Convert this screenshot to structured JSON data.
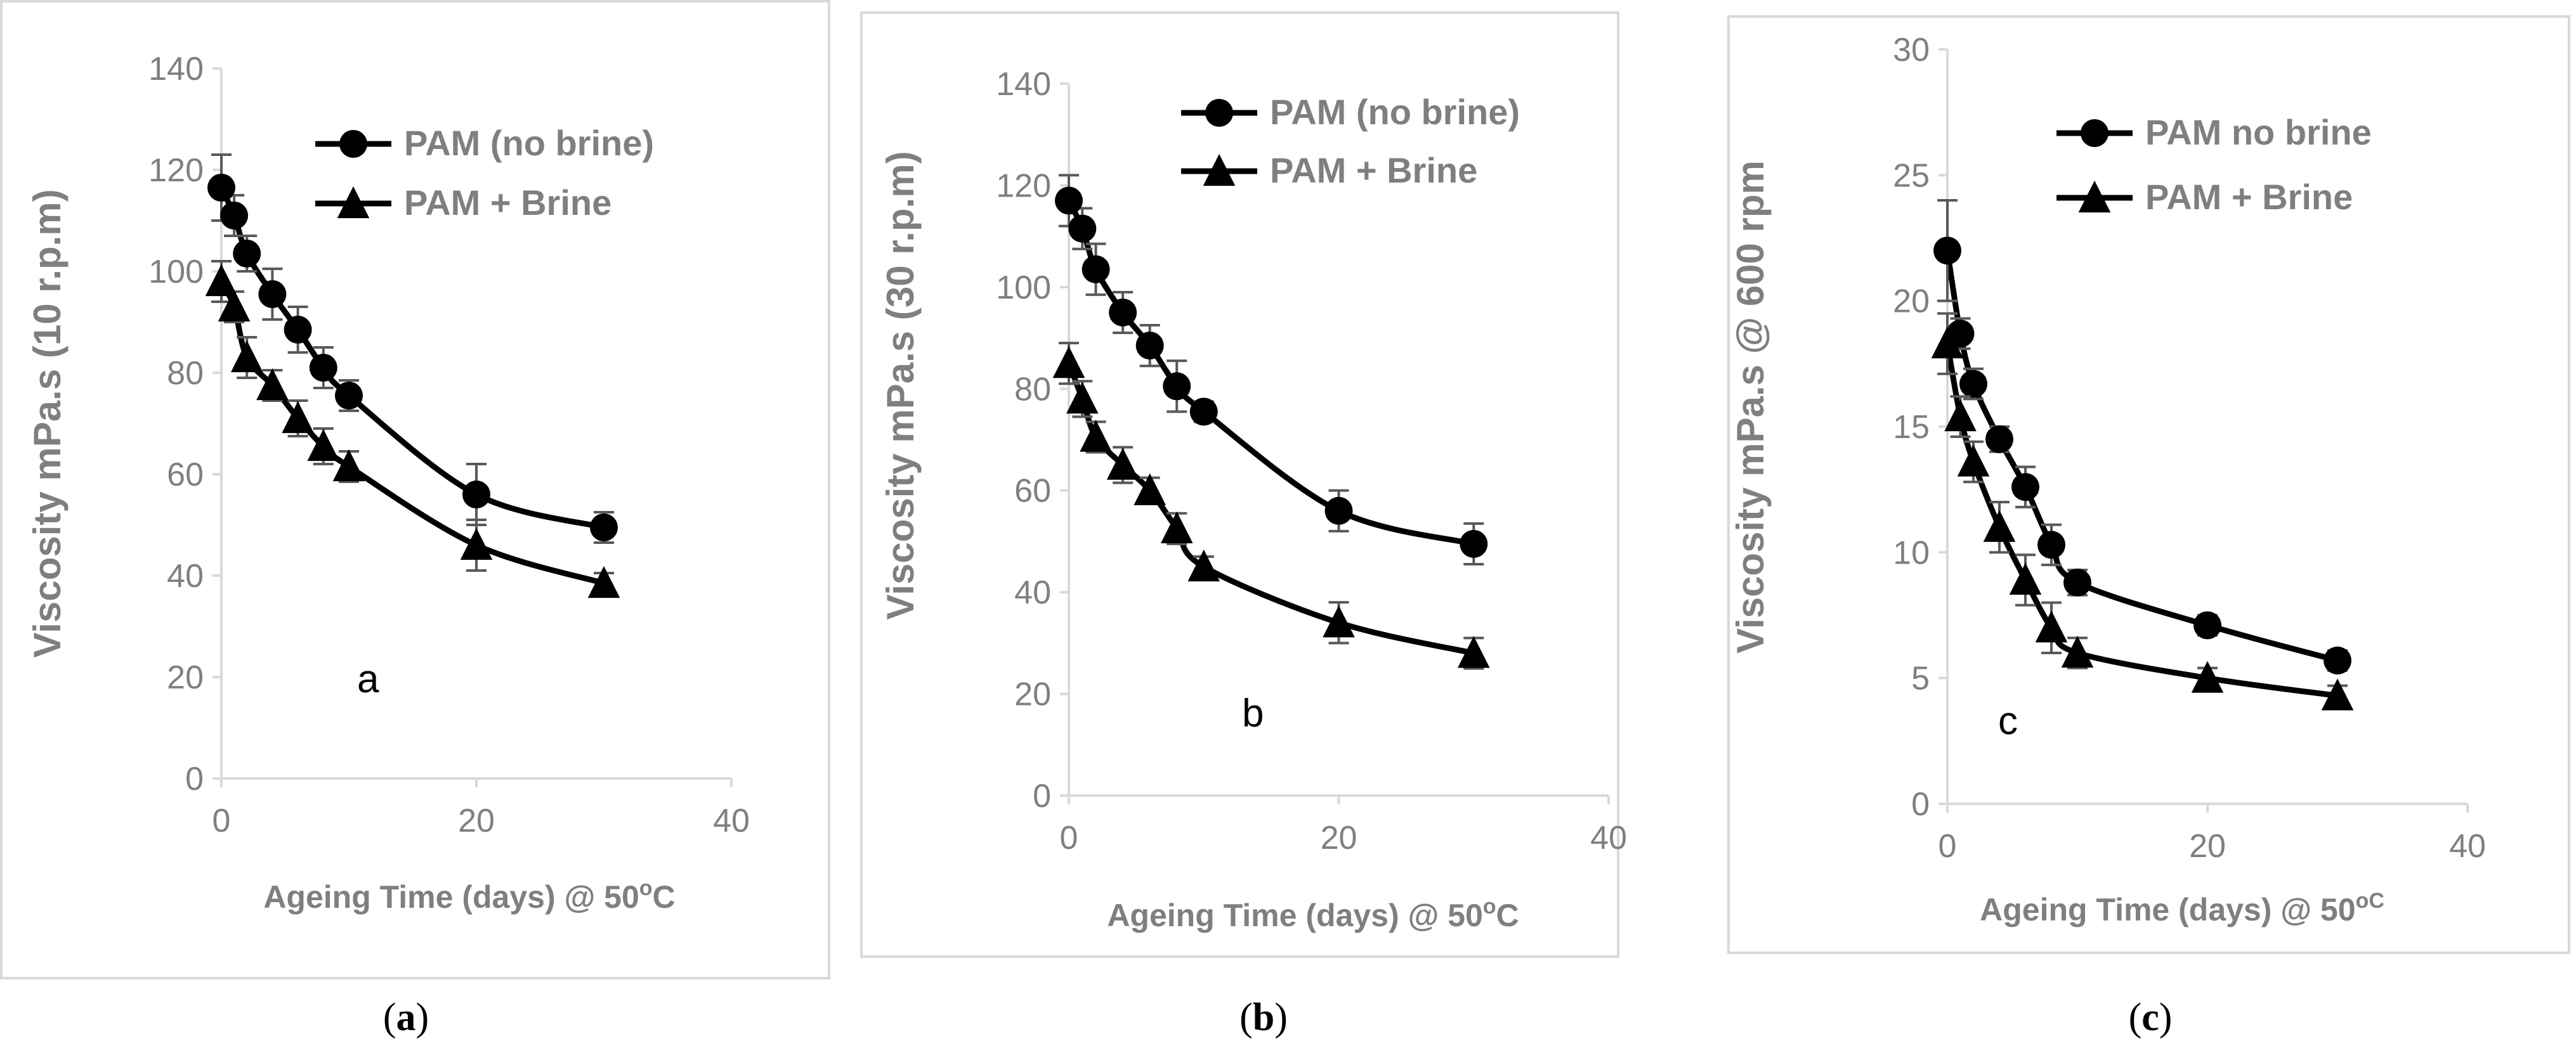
{
  "colors": {
    "series": "#000000",
    "axis_text": "#7f7f7f",
    "axis_line": "#d9d9d9",
    "frame": "#d9d9d9",
    "error_bar": "#595959"
  },
  "panels": [
    {
      "caption": "(a)",
      "caption_letter": "a",
      "inner_label": "a",
      "chart_data": {
        "type": "line",
        "xlabel": "Ageing Time (days) @ 50",
        "xlabel_sup": "o",
        "xlabel_tail": "C",
        "ylabel": "Viscosity mPa.s (10 r.p.m)",
        "xlim": [
          0,
          40
        ],
        "ylim": [
          0,
          140
        ],
        "xticks": [
          "0",
          "20",
          "40"
        ],
        "yticks": [
          "0",
          "20",
          "40",
          "60",
          "80",
          "100",
          "120",
          "140"
        ],
        "legend_position": "top-right",
        "grid": false,
        "series": [
          {
            "name": "PAM (no brine)",
            "marker": "circle",
            "x": [
              0,
              1,
              2,
              4,
              6,
              8,
              10,
              20,
              30
            ],
            "y": [
              116.5,
              111,
              103.5,
              95.5,
              88.5,
              81,
              75.5,
              56,
              49.5
            ],
            "err": [
              6.5,
              4,
              3.5,
              5,
              4.5,
              4,
              3,
              6,
              3
            ]
          },
          {
            "name": "PAM + Brine",
            "marker": "triangle",
            "x": [
              0,
              1,
              2,
              4,
              6,
              8,
              10,
              20,
              30
            ],
            "y": [
              98,
              93,
              83,
              77.5,
              71,
              65.5,
              61.5,
              46,
              38.5
            ],
            "err": [
              4,
              3,
              4,
              3,
              3.5,
              3.5,
              3,
              5,
              2
            ]
          }
        ]
      }
    },
    {
      "caption": "(b)",
      "caption_letter": "b",
      "inner_label": "b",
      "chart_data": {
        "type": "line",
        "xlabel": "Ageing Time (days) @ 50",
        "xlabel_sup": "o",
        "xlabel_tail": "C",
        "ylabel": "Viscosity mPa.s (30 r.p.m)",
        "xlim": [
          0,
          40
        ],
        "ylim": [
          0,
          140
        ],
        "xticks": [
          "0",
          "20",
          "40"
        ],
        "yticks": [
          "0",
          "20",
          "40",
          "60",
          "80",
          "100",
          "120",
          "140"
        ],
        "legend_position": "top-right",
        "grid": false,
        "series": [
          {
            "name": "PAM (no brine)",
            "marker": "circle",
            "x": [
              0,
              1,
              2,
              4,
              6,
              8,
              10,
              20,
              30
            ],
            "y": [
              117,
              111.5,
              103.5,
              95,
              88.5,
              80.5,
              75.5,
              56,
              49.5
            ],
            "err": [
              5,
              4,
              5,
              4,
              4,
              5,
              2,
              4,
              4
            ]
          },
          {
            "name": "PAM + Brine",
            "marker": "triangle",
            "x": [
              0,
              1,
              2,
              4,
              6,
              8,
              10,
              20,
              30
            ],
            "y": [
              85,
              78,
              70.5,
              65,
              60,
              52.5,
              45,
              34,
              28
            ],
            "err": [
              4,
              3.5,
              3,
              3.5,
              2.5,
              3,
              2,
              4,
              3
            ]
          }
        ]
      }
    },
    {
      "caption": "(c)",
      "caption_letter": "c",
      "inner_label": "c",
      "chart_data": {
        "type": "line",
        "xlabel": "Ageing Time (days) @ 50",
        "xlabel_sup": "oC",
        "xlabel_tail": "",
        "ylabel": "Viscosity mPa.s @ 600 rpm",
        "xlim": [
          0,
          40
        ],
        "ylim": [
          0,
          30
        ],
        "xticks": [
          "0",
          "20",
          "40"
        ],
        "yticks": [
          "0",
          "5",
          "10",
          "15",
          "20",
          "25",
          "30"
        ],
        "legend_position": "top-right",
        "grid": false,
        "series": [
          {
            "name": "PAM no brine",
            "marker": "circle",
            "x": [
              0,
              1,
              2,
              4,
              6,
              8,
              10,
              20,
              30
            ],
            "y": [
              22,
              18.7,
              16.7,
              14.5,
              12.6,
              10.3,
              8.8,
              7.1,
              5.7
            ],
            "err": [
              2,
              0.6,
              0.6,
              0.5,
              0.8,
              0.8,
              0.5,
              0.4,
              0.4
            ]
          },
          {
            "name": "PAM + Brine",
            "marker": "triangle",
            "x": [
              0,
              1,
              2,
              4,
              6,
              8,
              10,
              20,
              30
            ],
            "y": [
              18.3,
              15.4,
              13.6,
              11,
              8.9,
              7,
              6,
              5,
              4.3
            ],
            "err": [
              1.2,
              0.8,
              0.8,
              1,
              1,
              1,
              0.6,
              0.4,
              0.4
            ]
          }
        ]
      }
    }
  ]
}
